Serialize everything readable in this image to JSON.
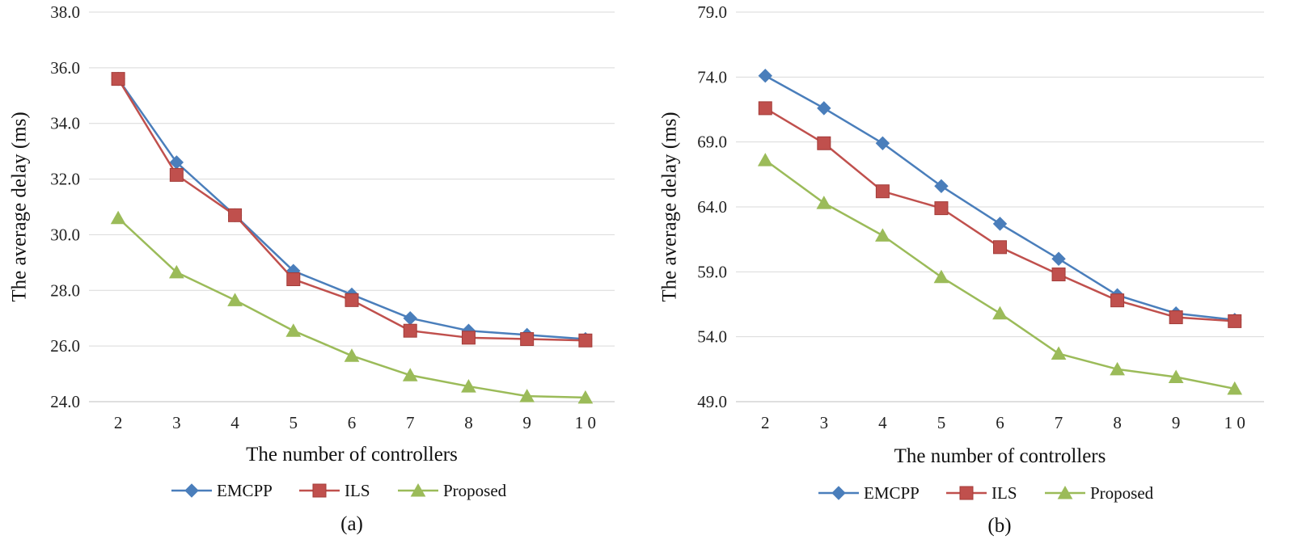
{
  "chart_data": [
    {
      "type": "line",
      "caption": "(a)",
      "categories": [
        "2",
        "3",
        "4",
        "5",
        "6",
        "7",
        "8",
        "9",
        "1 0"
      ],
      "yticks": [
        "24.0",
        "26.0",
        "28.0",
        "30.0",
        "32.0",
        "34.0",
        "36.0",
        "38.0"
      ],
      "ylim": [
        24.0,
        38.0
      ],
      "xlabel": "The number of controllers",
      "ylabel": "The average delay (ms)",
      "legend_position": "bottom",
      "series": [
        {
          "name": "EMCPP",
          "color": "#4a7ebb",
          "marker": "diamond",
          "values": [
            35.6,
            32.6,
            30.7,
            28.7,
            27.85,
            27.0,
            26.55,
            26.4,
            26.25
          ]
        },
        {
          "name": "ILS",
          "color": "#c0504d",
          "marker": "square",
          "values": [
            35.6,
            32.15,
            30.7,
            28.4,
            27.65,
            26.55,
            26.3,
            26.25,
            26.2
          ]
        },
        {
          "name": "Proposed",
          "color": "#9bbb59",
          "marker": "triangle",
          "values": [
            30.6,
            28.65,
            27.65,
            26.55,
            25.65,
            24.95,
            24.55,
            24.2,
            24.15
          ]
        }
      ]
    },
    {
      "type": "line",
      "caption": "(b)",
      "categories": [
        "2",
        "3",
        "4",
        "5",
        "6",
        "7",
        "8",
        "9",
        "1 0"
      ],
      "yticks": [
        "49.0",
        "54.0",
        "59.0",
        "64.0",
        "69.0",
        "74.0",
        "79.0"
      ],
      "ylim": [
        49.0,
        79.0
      ],
      "xlabel": "The number of controllers",
      "ylabel": "The average delay (ms)",
      "legend_position": "bottom",
      "series": [
        {
          "name": "EMCPP",
          "color": "#4a7ebb",
          "marker": "diamond",
          "values": [
            74.1,
            71.6,
            68.9,
            65.6,
            62.7,
            60.0,
            57.2,
            55.8,
            55.3
          ]
        },
        {
          "name": "ILS",
          "color": "#c0504d",
          "marker": "square",
          "values": [
            71.6,
            68.9,
            65.2,
            63.9,
            60.9,
            58.8,
            56.8,
            55.5,
            55.2
          ]
        },
        {
          "name": "Proposed",
          "color": "#9bbb59",
          "marker": "triangle",
          "values": [
            67.6,
            64.3,
            61.8,
            58.6,
            55.8,
            52.7,
            51.5,
            50.9,
            50.0
          ]
        }
      ]
    }
  ]
}
